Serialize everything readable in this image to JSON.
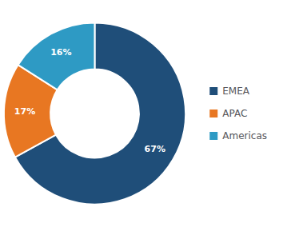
{
  "chart_data": {
    "type": "pie",
    "categories": [
      "EMEA",
      "APAC",
      "Americas"
    ],
    "values": [
      67,
      17,
      16
    ],
    "value_labels": [
      "67%",
      "17%",
      "16%"
    ],
    "colors": [
      "#1f4e79",
      "#e87722",
      "#2e9ac4"
    ],
    "data_labels": true,
    "legend": "right"
  }
}
